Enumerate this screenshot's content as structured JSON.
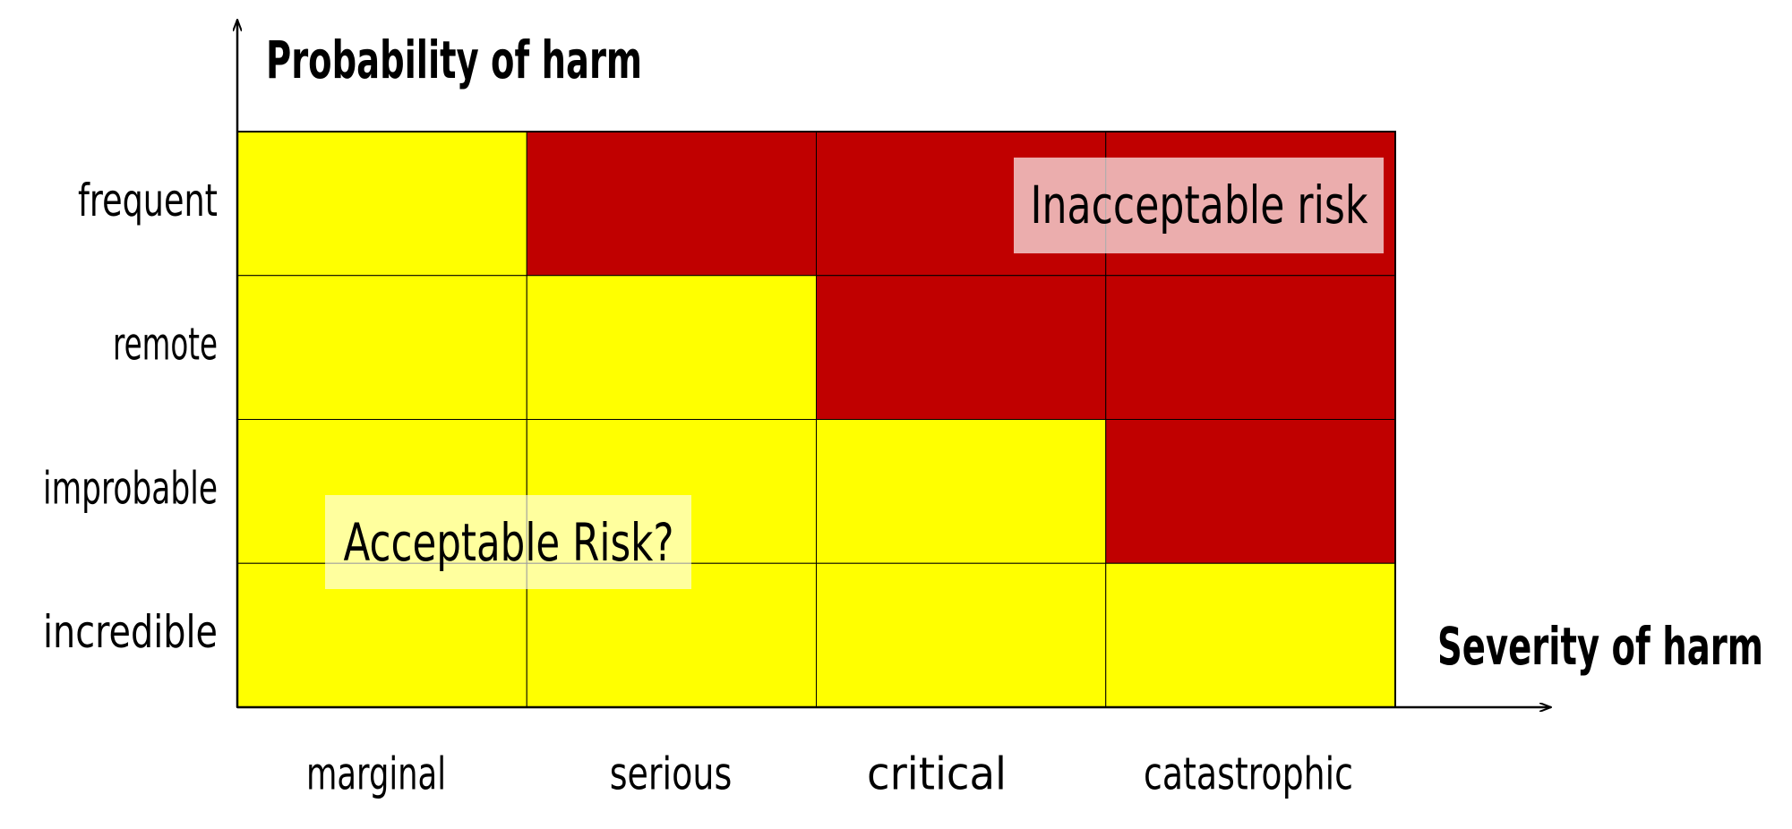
{
  "axes": {
    "y_label": "Probability of harm",
    "x_label": "Severity of harm"
  },
  "rows": [
    "frequent",
    "remote",
    "improbable",
    "incredible"
  ],
  "columns": [
    "marginal",
    "serious",
    "critical",
    "catastrophic"
  ],
  "cell_colors": [
    [
      "#ffff00",
      "#c00000",
      "#c00000",
      "#c00000"
    ],
    [
      "#ffff00",
      "#ffff00",
      "#c00000",
      "#c00000"
    ],
    [
      "#ffff00",
      "#ffff00",
      "#ffff00",
      "#c00000"
    ],
    [
      "#ffff00",
      "#ffff00",
      "#ffff00",
      "#ffff00"
    ]
  ],
  "annotations": [
    "Inacceptable risk",
    "Acceptable Risk?"
  ]
}
